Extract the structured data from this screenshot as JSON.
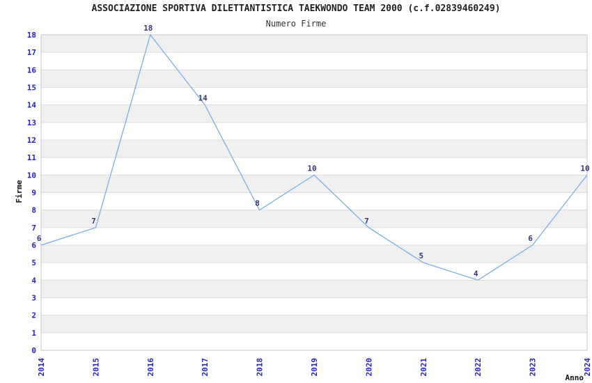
{
  "chart_data": {
    "type": "line",
    "title": "ASSOCIAZIONE SPORTIVA DILETTANTISTICA TAEKWONDO TEAM 2000 (c.f.02839460249)",
    "subtitle": "Numero Firme",
    "xlabel": "Anno",
    "ylabel": "Firme",
    "x": [
      "2014",
      "2015",
      "2016",
      "2017",
      "2018",
      "2019",
      "2020",
      "2021",
      "2022",
      "2023",
      "2024"
    ],
    "series": [
      {
        "name": "Numero Firme",
        "values": [
          6,
          7,
          18,
          14,
          8,
          10,
          7,
          5,
          4,
          6,
          10
        ]
      }
    ],
    "point_labels": [
      "6",
      "7",
      "18",
      "14",
      "8",
      "10",
      "7",
      "5",
      "4",
      "6",
      "10"
    ],
    "ylim": [
      0,
      18
    ],
    "y_tick_step": 1,
    "grid": "horizontal",
    "background_bands": "alternating",
    "legend_position": "none",
    "markers": "none",
    "x_tick_rotation_deg": 90
  },
  "colors": {
    "line": "#7aaee8",
    "tick_label": "#2323cc",
    "data_label": "#333380",
    "band": "#f0f0f0",
    "grid": "#dcdcdc",
    "plot_border": "#c6c6c6",
    "title_text": "#222222"
  }
}
